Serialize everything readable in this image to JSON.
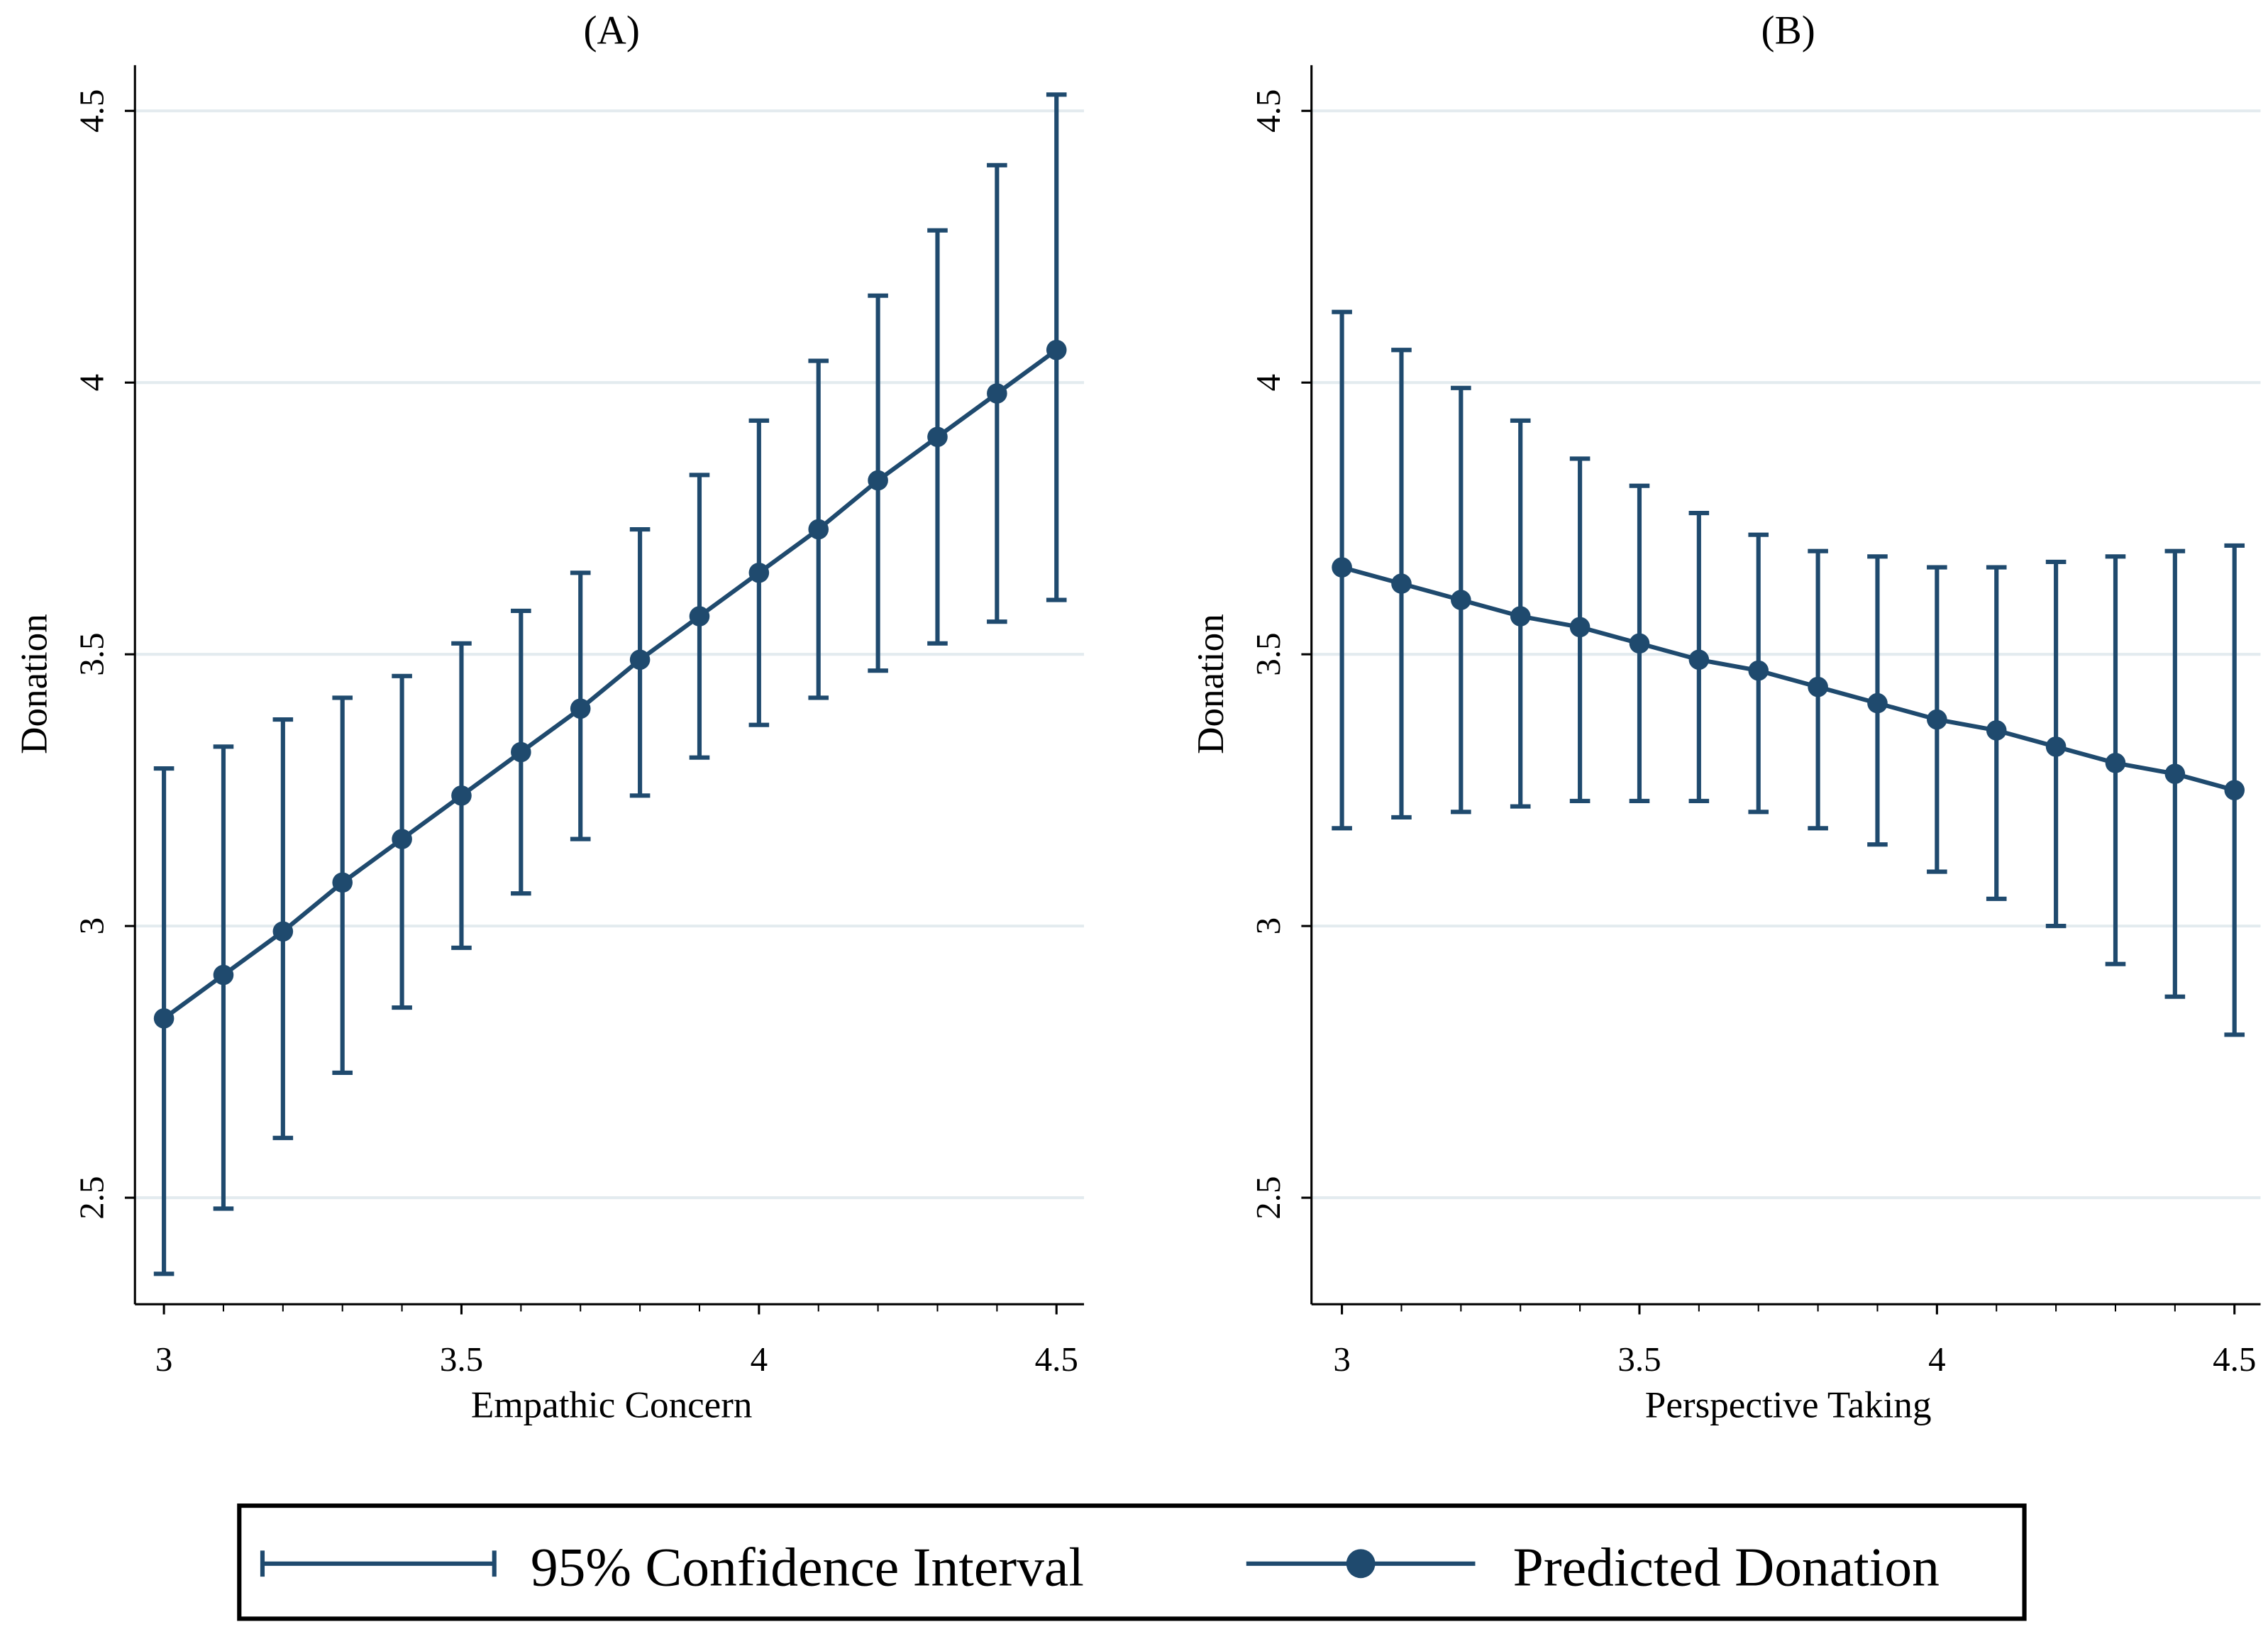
{
  "colors": {
    "series": "#1f4a6e",
    "grid": "#e3ebef",
    "axis": "#000000"
  },
  "chart_data": [
    {
      "type": "line",
      "title": "(A)",
      "xlabel": "Empathic Concern",
      "ylabel": "Donation",
      "xlim": [
        3,
        4.5
      ],
      "ylim": [
        2.3,
        4.6
      ],
      "xticks": [
        "3",
        "3.5",
        "4",
        "4.5"
      ],
      "yticks": [
        "2.5",
        "3",
        "3.5",
        "4",
        "4.5"
      ],
      "grid": true,
      "x": [
        3.0,
        3.1,
        3.2,
        3.3,
        3.4,
        3.5,
        3.6,
        3.7,
        3.8,
        3.9,
        4.0,
        4.1,
        4.2,
        4.3,
        4.4,
        4.5
      ],
      "series": [
        {
          "name": "Predicted Donation",
          "values": [
            2.83,
            2.91,
            2.99,
            3.08,
            3.16,
            3.24,
            3.32,
            3.4,
            3.49,
            3.57,
            3.65,
            3.73,
            3.82,
            3.9,
            3.98,
            4.06
          ]
        },
        {
          "name": "95% CI lower",
          "values": [
            2.36,
            2.48,
            2.61,
            2.73,
            2.85,
            2.96,
            3.06,
            3.16,
            3.24,
            3.31,
            3.37,
            3.42,
            3.47,
            3.52,
            3.56,
            3.6
          ]
        },
        {
          "name": "95% CI upper",
          "values": [
            3.29,
            3.33,
            3.38,
            3.42,
            3.46,
            3.52,
            3.58,
            3.65,
            3.73,
            3.83,
            3.93,
            4.04,
            4.16,
            4.28,
            4.4,
            4.53
          ]
        }
      ]
    },
    {
      "type": "line",
      "title": "(B)",
      "xlabel": "Perspective Taking",
      "ylabel": "Donation",
      "xlim": [
        3,
        4.5
      ],
      "ylim": [
        2.3,
        4.6
      ],
      "xticks": [
        "3",
        "3.5",
        "4",
        "4.5"
      ],
      "yticks": [
        "2.5",
        "3",
        "3.5",
        "4",
        "4.5"
      ],
      "grid": true,
      "x": [
        3.0,
        3.1,
        3.2,
        3.3,
        3.4,
        3.5,
        3.6,
        3.7,
        3.8,
        3.9,
        4.0,
        4.1,
        4.2,
        4.3,
        4.4,
        4.5
      ],
      "series": [
        {
          "name": "Predicted Donation",
          "values": [
            3.66,
            3.63,
            3.6,
            3.57,
            3.55,
            3.52,
            3.49,
            3.47,
            3.44,
            3.41,
            3.38,
            3.36,
            3.33,
            3.3,
            3.28,
            3.25
          ]
        },
        {
          "name": "95% CI lower",
          "values": [
            3.18,
            3.2,
            3.21,
            3.22,
            3.23,
            3.23,
            3.23,
            3.21,
            3.18,
            3.15,
            3.1,
            3.05,
            3.0,
            2.93,
            2.87,
            2.8
          ]
        },
        {
          "name": "95% CI upper",
          "values": [
            4.13,
            4.06,
            3.99,
            3.93,
            3.86,
            3.81,
            3.76,
            3.72,
            3.69,
            3.68,
            3.66,
            3.66,
            3.67,
            3.68,
            3.69,
            3.7
          ]
        }
      ]
    }
  ],
  "legend": {
    "placement": "bottom",
    "items": [
      "95% Confidence Interval",
      "Predicted Donation"
    ]
  }
}
